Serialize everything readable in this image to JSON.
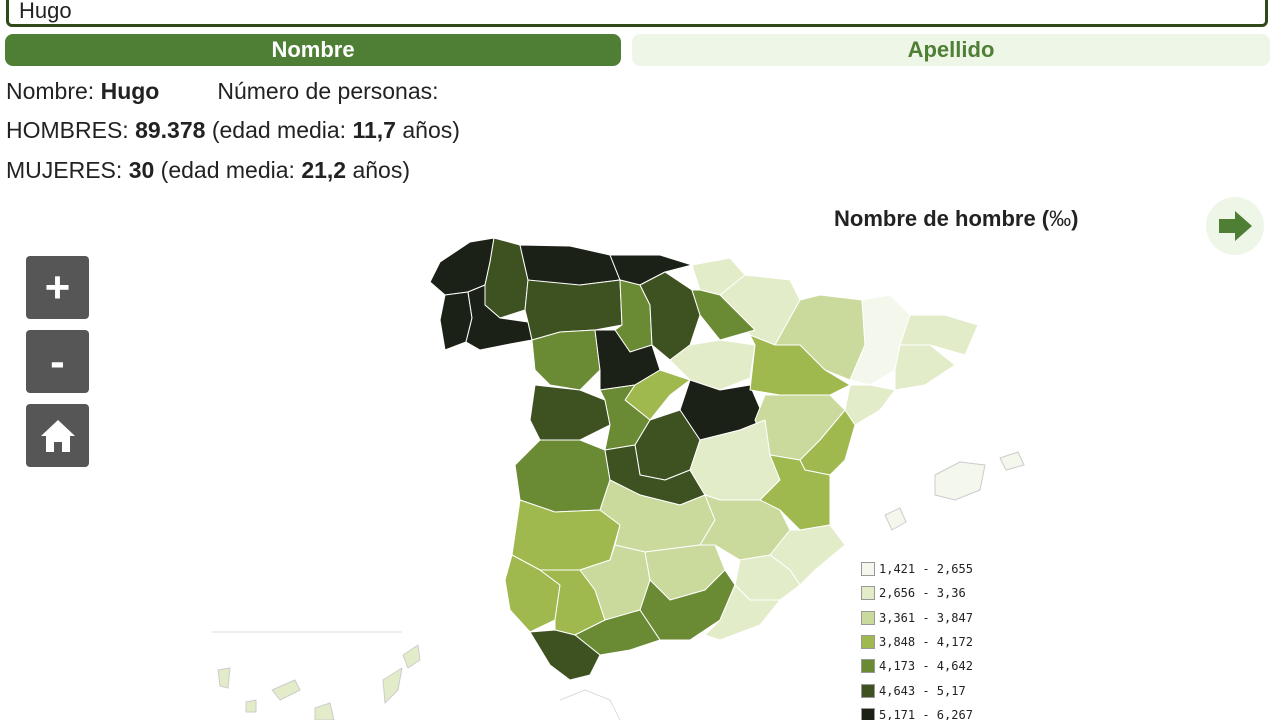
{
  "search": {
    "value": "Hugo"
  },
  "tabs": [
    {
      "label": "Nombre",
      "active": true
    },
    {
      "label": "Apellido",
      "active": false
    }
  ],
  "info": {
    "name_label": "Nombre: ",
    "name_value": "Hugo",
    "persons_label": "Número de personas:",
    "men_label": "HOMBRES: ",
    "men_count": "89.378",
    "men_age_prefix": " (edad media: ",
    "men_age": "11,7",
    "men_age_suffix": " años)",
    "women_label": "MUJERES: ",
    "women_count": "30",
    "women_age_prefix": " (edad media: ",
    "women_age": "21,2",
    "women_age_suffix": " años)"
  },
  "map": {
    "title": "Nombre de hombre (",
    "title_unit": "‰",
    "title_close": ")",
    "controls": {
      "zoom_in": "+",
      "zoom_out": "-"
    },
    "icons": {
      "next": "arrow-right-icon",
      "home": "home-icon"
    },
    "legend": [
      {
        "label": "1,421 - 2,655",
        "color": "#f4f7ec"
      },
      {
        "label": "2,656 - 3,36",
        "color": "#e3ecc9"
      },
      {
        "label": "3,361 - 3,847",
        "color": "#c9da9c"
      },
      {
        "label": "3,848 - 4,172",
        "color": "#9fb94e"
      },
      {
        "label": "4,173 - 4,642",
        "color": "#6b8a34"
      },
      {
        "label": "4,643 - 5,17",
        "color": "#3e5221"
      },
      {
        "label": "5,171 - 6,267",
        "color": "#1c2118"
      }
    ]
  }
}
